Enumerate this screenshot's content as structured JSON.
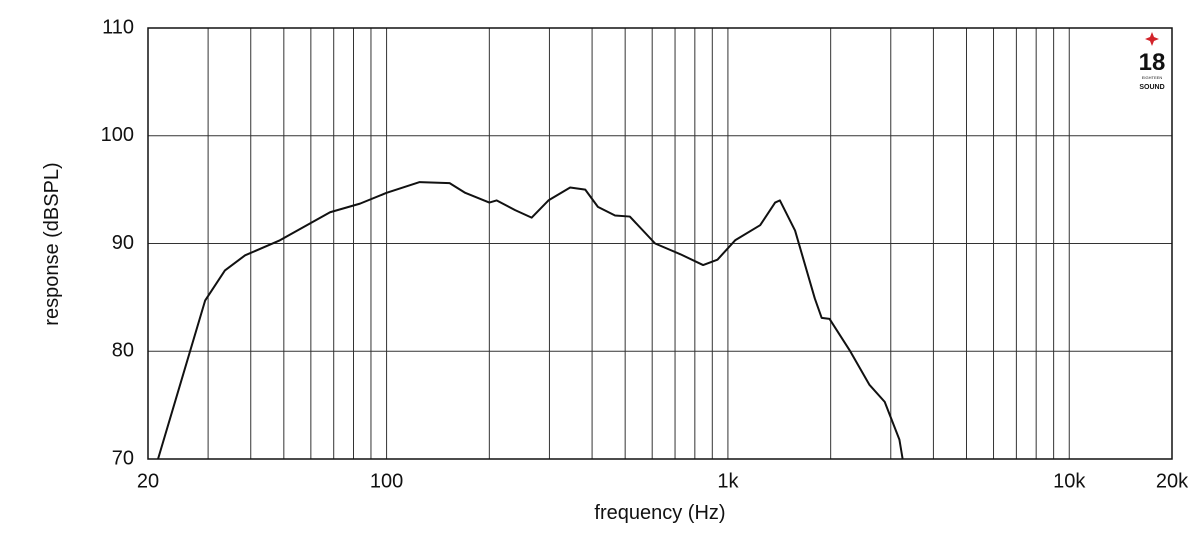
{
  "chart_data": {
    "type": "line",
    "xscale": "log",
    "grid": true,
    "xlabel": "frequency (Hz)",
    "ylabel": "response (dBSPL)",
    "xlim": [
      20,
      20000
    ],
    "ylim": [
      70,
      110
    ],
    "xticks": [
      20,
      100,
      {
        "value": 1000,
        "label": "1k"
      },
      {
        "value": 10000,
        "label": "10k"
      },
      {
        "value": 20000,
        "label": "20k"
      }
    ],
    "xminor_ticks": [
      30,
      40,
      50,
      60,
      70,
      80,
      90,
      200,
      300,
      400,
      500,
      600,
      700,
      800,
      900,
      2000,
      3000,
      4000,
      5000,
      6000,
      7000,
      8000,
      9000
    ],
    "yticks": [
      70,
      80,
      90,
      100,
      110
    ],
    "color": "#111111",
    "x": [
      21.4,
      29.4,
      33.6,
      38.5,
      48.7,
      68.3,
      83.6,
      100,
      125,
      153,
      170,
      200,
      210,
      238,
      266,
      298,
      345,
      382,
      416,
      467,
      516,
      612,
      726,
      846,
      932,
      1050,
      1243,
      1375,
      1420,
      1573,
      1797,
      1882,
      1985,
      2272,
      2596,
      2880,
      3180,
      3250
    ],
    "values": [
      70,
      84.7,
      87.5,
      88.9,
      90.3,
      92.9,
      93.7,
      94.7,
      95.7,
      95.6,
      94.7,
      93.8,
      94,
      93.1,
      92.4,
      94,
      95.2,
      95,
      93.4,
      92.6,
      92.5,
      90,
      89,
      88,
      88.5,
      90.3,
      91.7,
      93.8,
      94,
      91.2,
      84.9,
      83.1,
      83,
      80.1,
      76.9,
      75.3,
      71.8,
      70
    ]
  },
  "logo": {
    "number": "18",
    "top": "EIGHTEEN",
    "bottom": "SOUND"
  }
}
